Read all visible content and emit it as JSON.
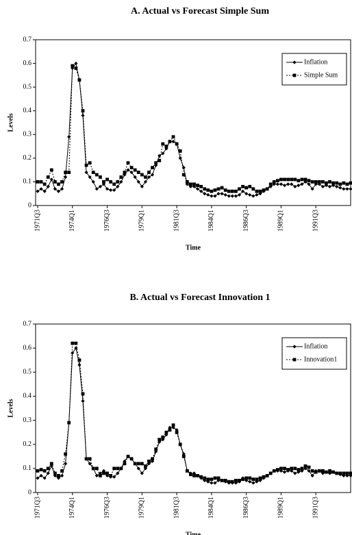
{
  "chart_data": [
    {
      "type": "line",
      "title": "A. Actual vs Forecast Simple Sum",
      "xlabel": "Time",
      "ylabel": "Levels",
      "categories": [
        "1971Q3",
        null,
        null,
        null,
        null,
        null,
        null,
        null,
        null,
        null,
        "1974Q1",
        null,
        null,
        null,
        null,
        null,
        null,
        null,
        null,
        null,
        "1976Q3",
        null,
        null,
        null,
        null,
        null,
        null,
        null,
        null,
        null,
        "1979Q1",
        null,
        null,
        null,
        null,
        null,
        null,
        null,
        null,
        null,
        "1981Q3",
        null,
        null,
        null,
        null,
        null,
        null,
        null,
        null,
        null,
        "1984Q1",
        null,
        null,
        null,
        null,
        null,
        null,
        null,
        null,
        null,
        "1986Q3",
        null,
        null,
        null,
        null,
        null,
        null,
        null,
        null,
        null,
        "1989Q1",
        null,
        null,
        null,
        null,
        null,
        null,
        null,
        null,
        null,
        "1991Q3",
        null,
        null,
        null,
        null,
        null,
        null,
        null,
        null,
        null,
        null
      ],
      "ylim": [
        0,
        0.7
      ],
      "yticks": [
        0,
        0.1,
        0.2,
        0.3,
        0.4,
        0.5,
        0.6,
        0.7
      ],
      "legend": "upper right",
      "series": [
        {
          "name": "Inflation",
          "color": "#000000",
          "marker": "diamond",
          "linestyle": "solid",
          "values": [
            0.06,
            0.07,
            0.06,
            0.08,
            0.11,
            0.07,
            0.06,
            0.07,
            0.12,
            0.29,
            0.58,
            0.6,
            0.53,
            0.38,
            0.14,
            0.12,
            0.1,
            0.07,
            0.08,
            0.09,
            0.07,
            0.065,
            0.065,
            0.08,
            0.1,
            0.13,
            0.15,
            0.14,
            0.12,
            0.1,
            0.08,
            0.1,
            0.12,
            0.13,
            0.17,
            0.21,
            0.22,
            0.24,
            0.27,
            0.27,
            0.26,
            0.2,
            0.16,
            0.09,
            0.08,
            0.08,
            0.07,
            0.06,
            0.05,
            0.045,
            0.04,
            0.04,
            0.05,
            0.05,
            0.045,
            0.04,
            0.04,
            0.04,
            0.045,
            0.06,
            0.05,
            0.045,
            0.04,
            0.045,
            0.05,
            0.06,
            0.07,
            0.08,
            0.09,
            0.09,
            0.09,
            0.085,
            0.09,
            0.09,
            0.08,
            0.085,
            0.09,
            0.1,
            0.09,
            0.07,
            0.09,
            0.09,
            0.08,
            0.085,
            0.08,
            0.085,
            0.08,
            0.075,
            0.07,
            0.07,
            0.07
          ]
        },
        {
          "name": "Simple Sum",
          "color": "#000000",
          "marker": "square",
          "linestyle": "dotted",
          "values": [
            0.1,
            0.1,
            0.09,
            0.12,
            0.15,
            0.1,
            0.09,
            0.1,
            0.14,
            0.14,
            0.59,
            0.58,
            0.53,
            0.4,
            0.17,
            0.18,
            0.14,
            0.13,
            0.12,
            0.1,
            0.11,
            0.1,
            0.09,
            0.1,
            0.12,
            0.14,
            0.18,
            0.16,
            0.15,
            0.14,
            0.13,
            0.12,
            0.14,
            0.16,
            0.18,
            0.19,
            0.26,
            0.25,
            0.27,
            0.29,
            0.26,
            0.23,
            0.13,
            0.1,
            0.09,
            0.09,
            0.085,
            0.08,
            0.07,
            0.065,
            0.06,
            0.065,
            0.07,
            0.075,
            0.065,
            0.06,
            0.06,
            0.06,
            0.07,
            0.08,
            0.075,
            0.08,
            0.07,
            0.06,
            0.06,
            0.065,
            0.07,
            0.09,
            0.1,
            0.105,
            0.11,
            0.11,
            0.11,
            0.11,
            0.11,
            0.105,
            0.11,
            0.11,
            0.105,
            0.1,
            0.1,
            0.1,
            0.1,
            0.095,
            0.1,
            0.095,
            0.095,
            0.09,
            0.095,
            0.09,
            0.095
          ]
        }
      ]
    },
    {
      "type": "line",
      "title": "B. Actual vs Forecast Innovation 1",
      "xlabel": "Time",
      "ylabel": "Levels",
      "categories": [
        "1971Q3",
        null,
        null,
        null,
        null,
        null,
        null,
        null,
        null,
        null,
        "1974Q1",
        null,
        null,
        null,
        null,
        null,
        null,
        null,
        null,
        null,
        "1976Q3",
        null,
        null,
        null,
        null,
        null,
        null,
        null,
        null,
        null,
        "1979Q1",
        null,
        null,
        null,
        null,
        null,
        null,
        null,
        null,
        null,
        "1981Q3",
        null,
        null,
        null,
        null,
        null,
        null,
        null,
        null,
        null,
        "1984Q1",
        null,
        null,
        null,
        null,
        null,
        null,
        null,
        null,
        null,
        "1986Q3",
        null,
        null,
        null,
        null,
        null,
        null,
        null,
        null,
        null,
        "1989Q1",
        null,
        null,
        null,
        null,
        null,
        null,
        null,
        null,
        null,
        "1991Q3",
        null,
        null,
        null,
        null,
        null,
        null,
        null,
        null,
        null,
        null
      ],
      "ylim": [
        0,
        0.7
      ],
      "yticks": [
        0,
        0.1,
        0.2,
        0.3,
        0.4,
        0.5,
        0.6,
        0.7
      ],
      "legend": "upper right",
      "series": [
        {
          "name": "Inflation",
          "color": "#000000",
          "marker": "diamond",
          "linestyle": "solid",
          "values": [
            0.06,
            0.07,
            0.06,
            0.08,
            0.11,
            0.07,
            0.06,
            0.07,
            0.12,
            0.29,
            0.58,
            0.6,
            0.53,
            0.38,
            0.14,
            0.12,
            0.1,
            0.07,
            0.08,
            0.09,
            0.07,
            0.065,
            0.065,
            0.08,
            0.1,
            0.13,
            0.15,
            0.14,
            0.12,
            0.1,
            0.08,
            0.1,
            0.12,
            0.13,
            0.17,
            0.21,
            0.22,
            0.24,
            0.27,
            0.27,
            0.26,
            0.2,
            0.16,
            0.09,
            0.08,
            0.08,
            0.07,
            0.06,
            0.05,
            0.045,
            0.04,
            0.04,
            0.05,
            0.05,
            0.045,
            0.04,
            0.04,
            0.04,
            0.045,
            0.06,
            0.05,
            0.045,
            0.04,
            0.045,
            0.05,
            0.06,
            0.07,
            0.08,
            0.09,
            0.09,
            0.09,
            0.085,
            0.09,
            0.09,
            0.08,
            0.085,
            0.09,
            0.1,
            0.09,
            0.07,
            0.09,
            0.09,
            0.08,
            0.085,
            0.08,
            0.085,
            0.08,
            0.075,
            0.07,
            0.07,
            0.07
          ]
        },
        {
          "name": "Innovation1",
          "color": "#000000",
          "marker": "square",
          "linestyle": "dotted",
          "values": [
            0.09,
            0.095,
            0.09,
            0.1,
            0.12,
            0.08,
            0.07,
            0.09,
            0.16,
            0.29,
            0.62,
            0.62,
            0.55,
            0.41,
            0.14,
            0.14,
            0.1,
            0.1,
            0.07,
            0.08,
            0.08,
            0.07,
            0.1,
            0.1,
            0.1,
            0.12,
            0.15,
            0.14,
            0.12,
            0.12,
            0.12,
            0.11,
            0.13,
            0.14,
            0.18,
            0.22,
            0.23,
            0.25,
            0.26,
            0.28,
            0.25,
            0.2,
            0.15,
            0.09,
            0.075,
            0.07,
            0.07,
            0.065,
            0.06,
            0.055,
            0.055,
            0.06,
            0.06,
            0.05,
            0.05,
            0.045,
            0.045,
            0.05,
            0.05,
            0.055,
            0.06,
            0.06,
            0.055,
            0.055,
            0.06,
            0.065,
            0.07,
            0.08,
            0.09,
            0.095,
            0.1,
            0.1,
            0.095,
            0.1,
            0.1,
            0.095,
            0.1,
            0.11,
            0.105,
            0.09,
            0.085,
            0.09,
            0.09,
            0.085,
            0.09,
            0.085,
            0.08,
            0.08,
            0.08,
            0.08,
            0.08
          ]
        }
      ]
    }
  ]
}
